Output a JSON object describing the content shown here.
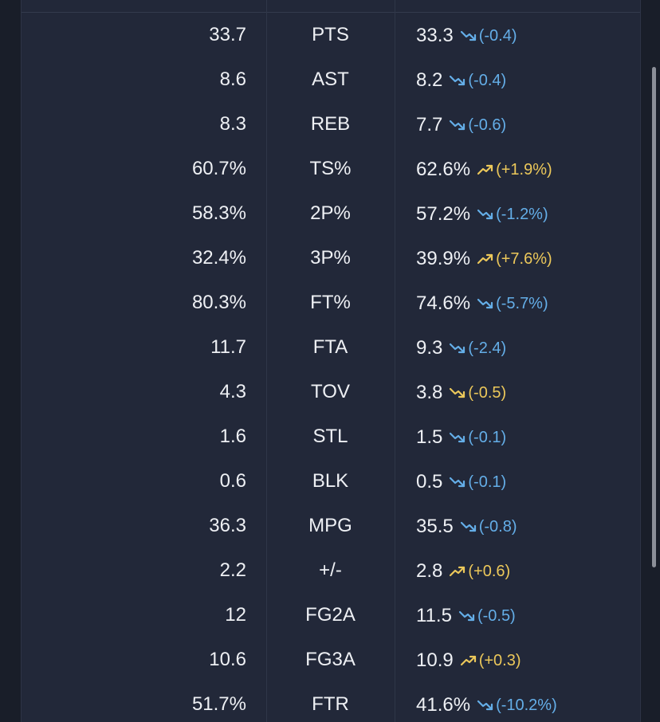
{
  "colors": {
    "background": "#191e29",
    "panel": "#222839",
    "text": "#eef0f4",
    "down_color": "#64aee8",
    "up_color": "#ecc85a"
  },
  "rows": [
    {
      "prev": "33.7",
      "stat": "PTS",
      "curr": "33.3",
      "delta": "(-0.4)",
      "trend": "down",
      "icon": "trend-down-icon"
    },
    {
      "prev": "8.6",
      "stat": "AST",
      "curr": "8.2",
      "delta": "(-0.4)",
      "trend": "down",
      "icon": "trend-down-icon"
    },
    {
      "prev": "8.3",
      "stat": "REB",
      "curr": "7.7",
      "delta": "(-0.6)",
      "trend": "down",
      "icon": "trend-down-icon"
    },
    {
      "prev": "60.7%",
      "stat": "TS%",
      "curr": "62.6%",
      "delta": "(+1.9%)",
      "trend": "up",
      "icon": "trend-up-icon"
    },
    {
      "prev": "58.3%",
      "stat": "2P%",
      "curr": "57.2%",
      "delta": "(-1.2%)",
      "trend": "down",
      "icon": "trend-down-icon"
    },
    {
      "prev": "32.4%",
      "stat": "3P%",
      "curr": "39.9%",
      "delta": "(+7.6%)",
      "trend": "up",
      "icon": "trend-up-icon"
    },
    {
      "prev": "80.3%",
      "stat": "FT%",
      "curr": "74.6%",
      "delta": "(-5.7%)",
      "trend": "down",
      "icon": "trend-down-icon"
    },
    {
      "prev": "11.7",
      "stat": "FTA",
      "curr": "9.3",
      "delta": "(-2.4)",
      "trend": "down",
      "icon": "trend-down-icon"
    },
    {
      "prev": "4.3",
      "stat": "TOV",
      "curr": "3.8",
      "delta": "(-0.5)",
      "trend": "down-good",
      "icon": "trend-down-icon"
    },
    {
      "prev": "1.6",
      "stat": "STL",
      "curr": "1.5",
      "delta": "(-0.1)",
      "trend": "down",
      "icon": "trend-down-icon"
    },
    {
      "prev": "0.6",
      "stat": "BLK",
      "curr": "0.5",
      "delta": "(-0.1)",
      "trend": "down",
      "icon": "trend-down-icon"
    },
    {
      "prev": "36.3",
      "stat": "MPG",
      "curr": "35.5",
      "delta": "(-0.8)",
      "trend": "down",
      "icon": "trend-down-icon"
    },
    {
      "prev": "2.2",
      "stat": "+/-",
      "curr": "2.8",
      "delta": "(+0.6)",
      "trend": "up",
      "icon": "trend-up-icon"
    },
    {
      "prev": "12",
      "stat": "FG2A",
      "curr": "11.5",
      "delta": "(-0.5)",
      "trend": "down",
      "icon": "trend-down-icon"
    },
    {
      "prev": "10.6",
      "stat": "FG3A",
      "curr": "10.9",
      "delta": "(+0.3)",
      "trend": "up",
      "icon": "trend-up-icon"
    },
    {
      "prev": "51.7%",
      "stat": "FTR",
      "curr": "41.6%",
      "delta": "(-10.2%)",
      "trend": "down",
      "icon": "trend-down-icon"
    }
  ]
}
